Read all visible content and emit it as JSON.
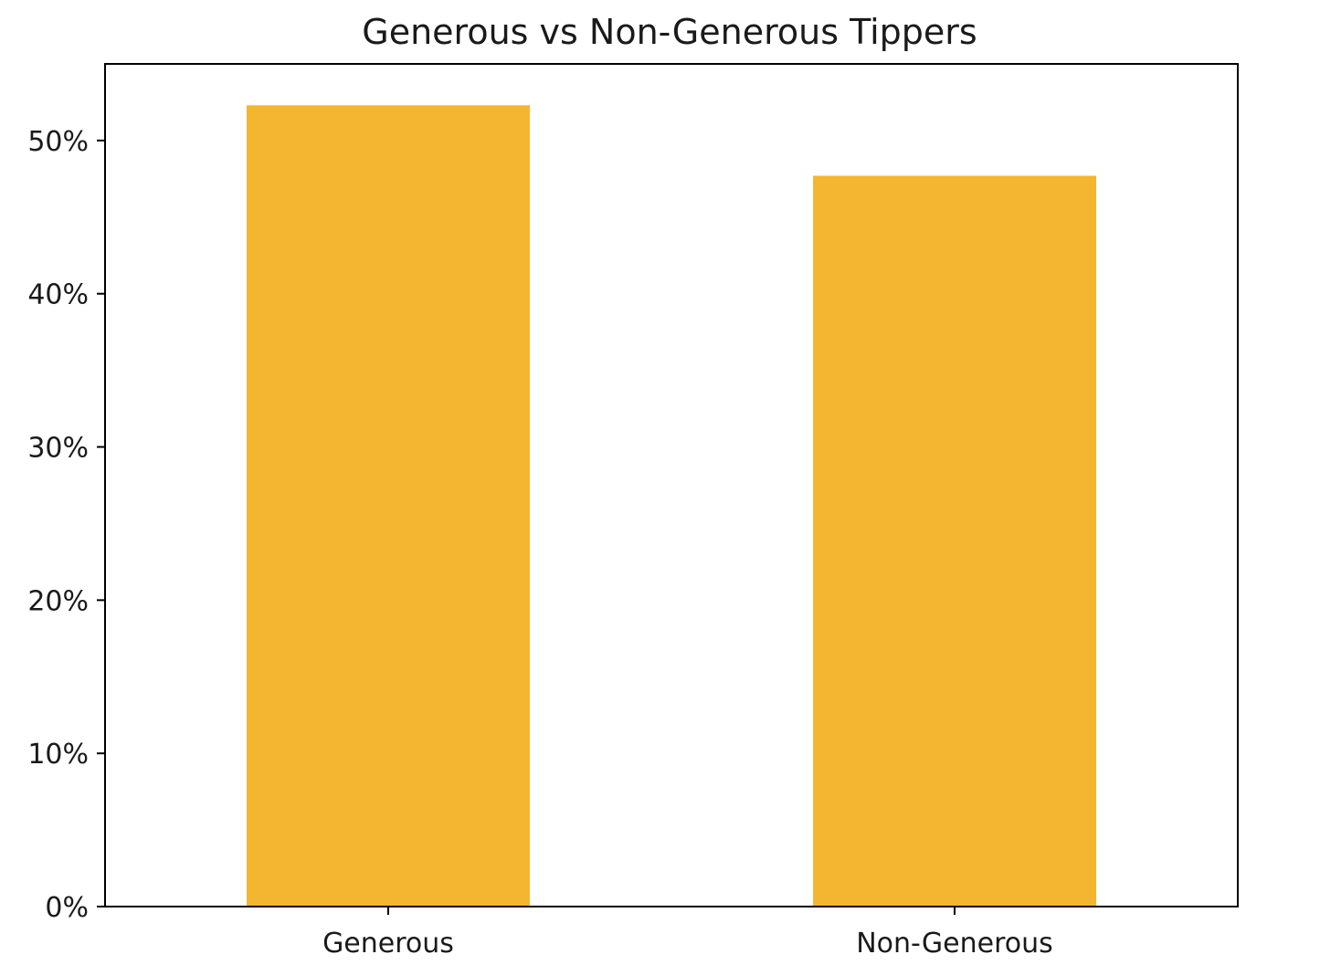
{
  "chart_data": {
    "type": "bar",
    "title": "Generous vs Non-Generous Tippers",
    "xlabel": "",
    "ylabel": "",
    "categories": [
      "Generous",
      "Non-Generous"
    ],
    "values": [
      52.3,
      47.7
    ],
    "ylim": [
      0,
      55
    ],
    "yticks": [
      0,
      10,
      20,
      30,
      40,
      50
    ],
    "ytick_labels": [
      "0%",
      "10%",
      "20%",
      "30%",
      "40%",
      "50%"
    ],
    "grid": false,
    "legend": "none",
    "bar_color": "#F4B531"
  }
}
